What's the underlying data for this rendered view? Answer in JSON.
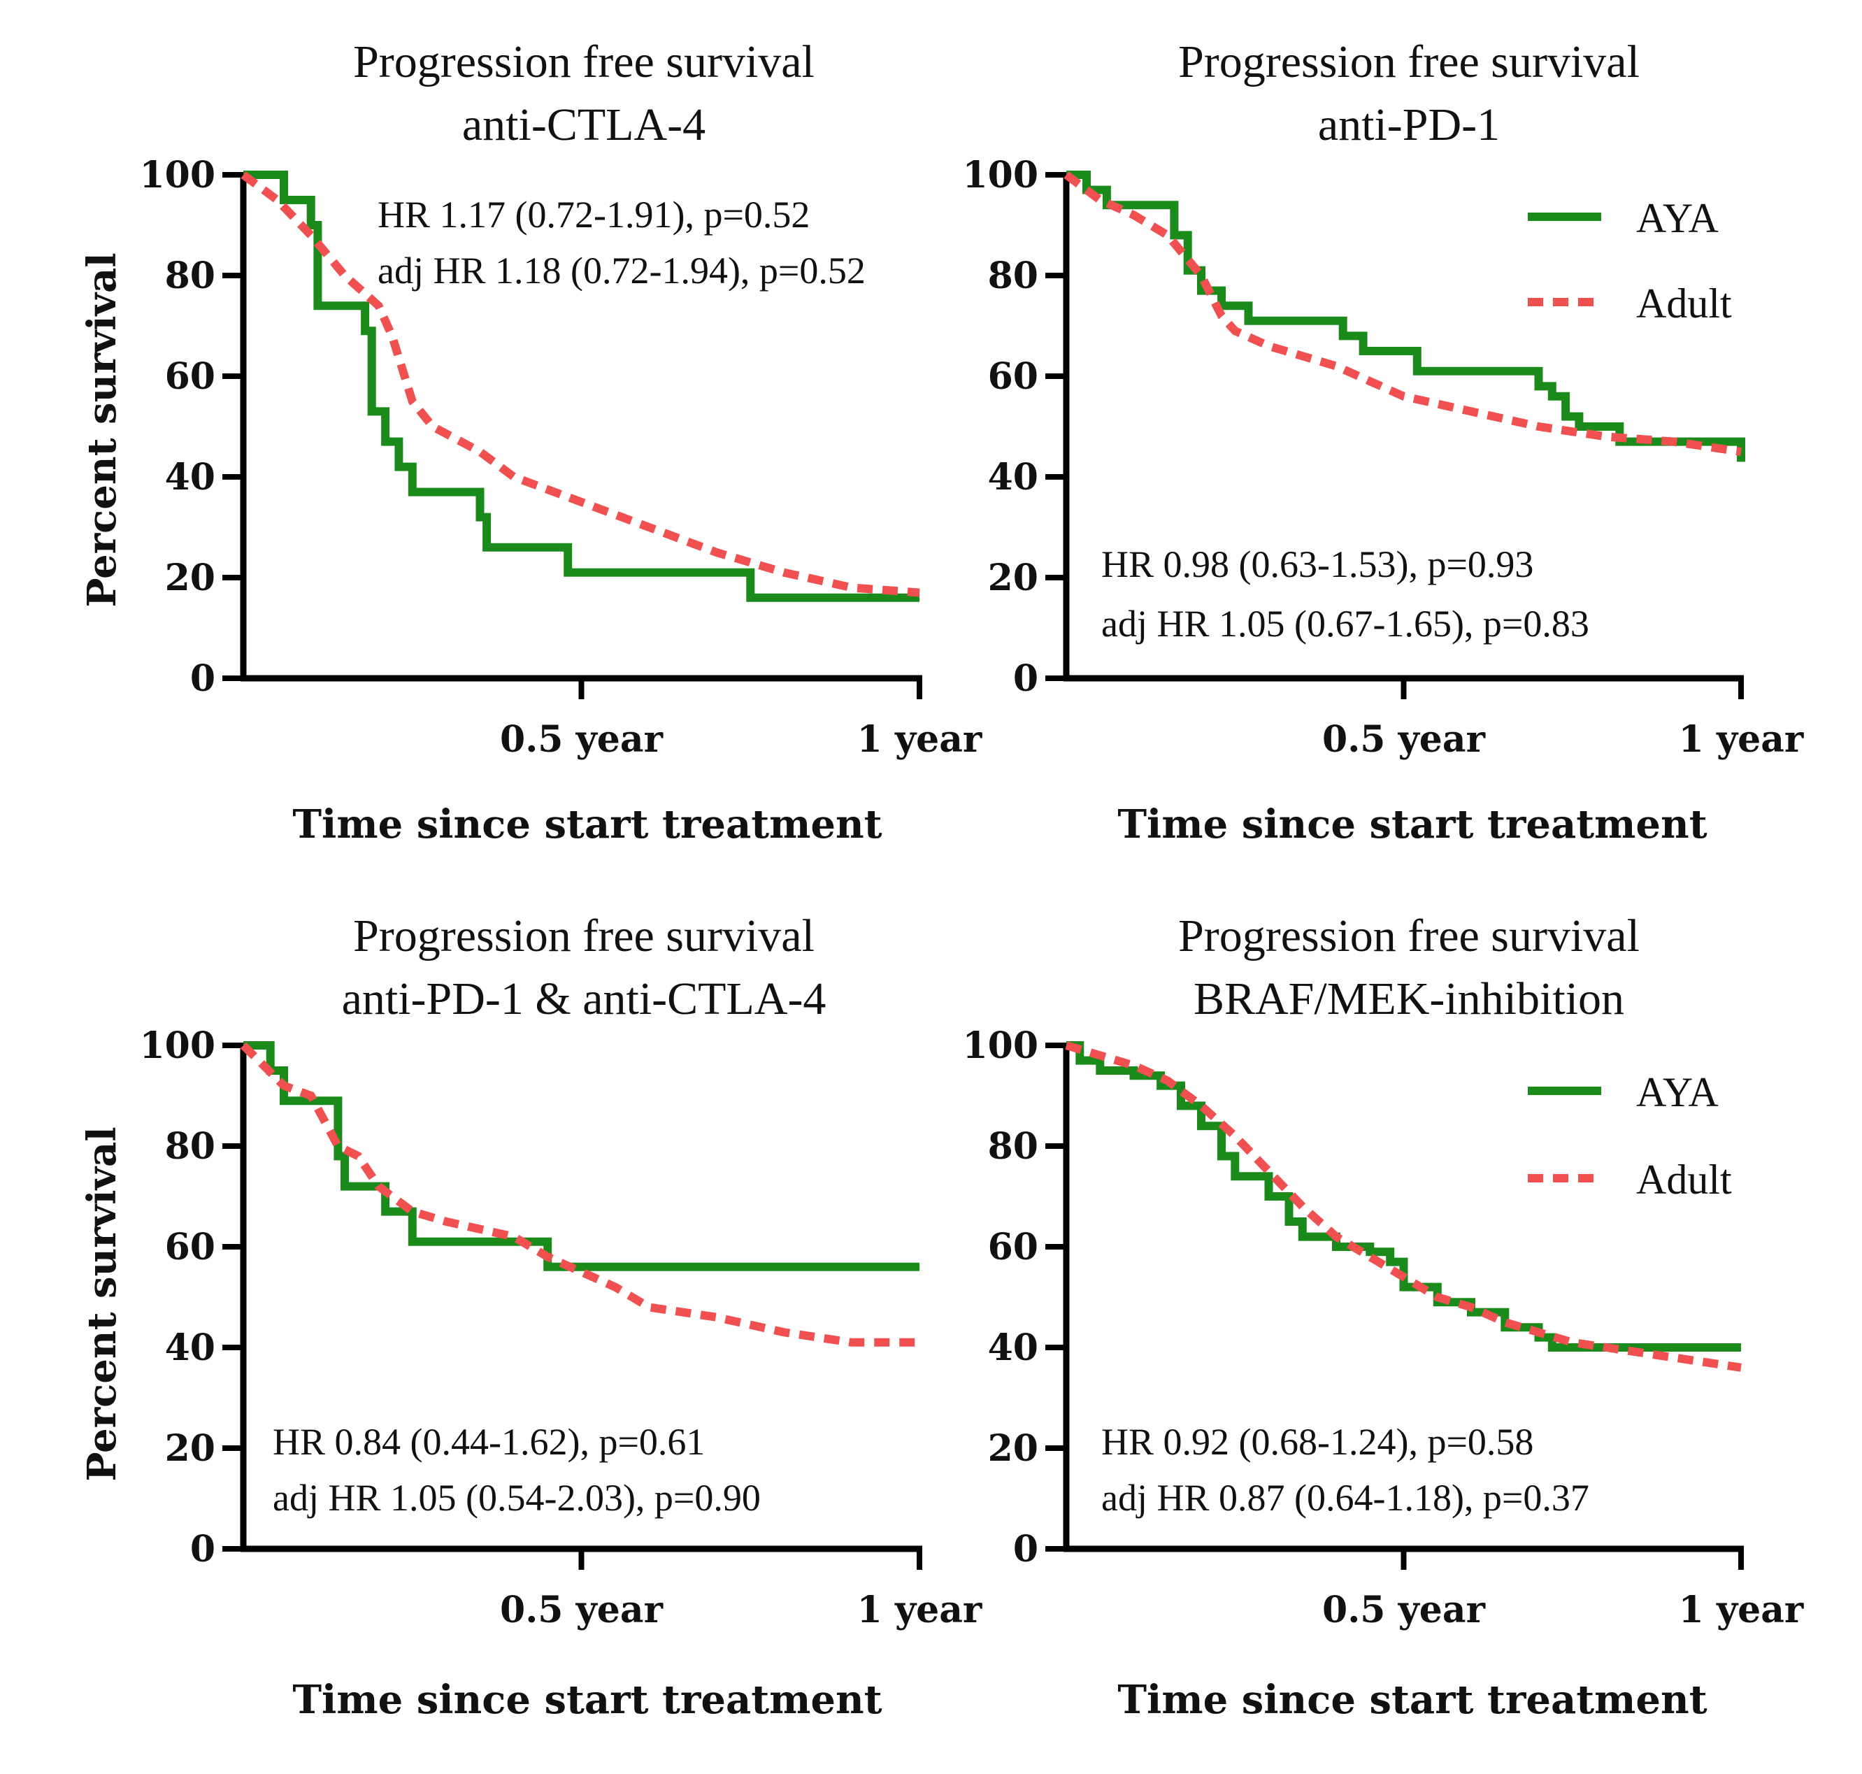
{
  "colors": {
    "aya": "#1a8a1a",
    "adult": "#f05050",
    "axis": "#000000"
  },
  "chart_data": [
    {
      "type": "line",
      "title": "Progression free survival",
      "subtitle": "anti-CTLA-4",
      "xlabel": "Time since start treatment",
      "ylabel": "Percent survival",
      "xlim": [
        0,
        1
      ],
      "ylim": [
        0,
        100
      ],
      "yticks": [
        "0",
        "20",
        "40",
        "60",
        "80",
        "100"
      ],
      "xticks": [
        {
          "value": 0.5,
          "label": "0.5 year"
        },
        {
          "value": 1,
          "label": "1 year"
        }
      ],
      "annotations": [
        "HR 1.17 (0.72-1.91), p=0.52",
        "adj  HR 1.18 (0.72-1.94), p=0.52"
      ],
      "annotation_position": "top-right",
      "legend": [],
      "series": [
        {
          "name": "AYA",
          "style": "solid-step",
          "x": [
            0,
            0.06,
            0.1,
            0.11,
            0.18,
            0.19,
            0.21,
            0.23,
            0.25,
            0.35,
            0.36,
            0.37,
            0.48,
            0.75,
            1.0
          ],
          "y": [
            100,
            95,
            90,
            74,
            69,
            53,
            47,
            42,
            37,
            32,
            26,
            26,
            21,
            16,
            16
          ]
        },
        {
          "name": "Adult",
          "style": "dashed",
          "x": [
            0,
            0.05,
            0.1,
            0.15,
            0.2,
            0.22,
            0.25,
            0.28,
            0.35,
            0.4,
            0.5,
            0.6,
            0.7,
            0.8,
            0.9,
            1.0
          ],
          "y": [
            100,
            95,
            88,
            80,
            74,
            68,
            55,
            50,
            45,
            40,
            35,
            30,
            25,
            21,
            18,
            17
          ]
        }
      ]
    },
    {
      "type": "line",
      "title": "Progression free survival",
      "subtitle": "anti-PD-1",
      "xlabel": "Time since start treatment",
      "ylabel": "",
      "xlim": [
        0,
        1
      ],
      "ylim": [
        0,
        100
      ],
      "yticks": [
        "0",
        "20",
        "40",
        "60",
        "80",
        "100"
      ],
      "xticks": [
        {
          "value": 0.5,
          "label": "0.5 year"
        },
        {
          "value": 1,
          "label": "1 year"
        }
      ],
      "annotations": [
        "HR 0.98 (0.63-1.53), p=0.93",
        "adj  HR 1.05 (0.67-1.65), p=0.83"
      ],
      "annotation_position": "bottom-left",
      "legend": [
        "AYA",
        "Adult"
      ],
      "series": [
        {
          "name": "AYA",
          "style": "solid-step",
          "x": [
            0,
            0.03,
            0.06,
            0.16,
            0.18,
            0.2,
            0.23,
            0.27,
            0.41,
            0.44,
            0.52,
            0.7,
            0.72,
            0.74,
            0.76,
            0.82,
            0.99,
            1.0
          ],
          "y": [
            100,
            97,
            94,
            88,
            81,
            77,
            74,
            71,
            68,
            65,
            61,
            58,
            56,
            52,
            50,
            47,
            47,
            43
          ]
        },
        {
          "name": "Adult",
          "style": "dashed",
          "x": [
            0,
            0.05,
            0.1,
            0.15,
            0.2,
            0.23,
            0.25,
            0.3,
            0.4,
            0.5,
            0.6,
            0.7,
            0.8,
            0.9,
            1.0
          ],
          "y": [
            100,
            95,
            92,
            88,
            80,
            72,
            69,
            66,
            62,
            56,
            53,
            50,
            48,
            47,
            45
          ]
        }
      ]
    },
    {
      "type": "line",
      "title": "Progression free survival",
      "subtitle": "anti-PD-1 & anti-CTLA-4",
      "xlabel": "Time since start treatment",
      "ylabel": "Percent survival",
      "xlim": [
        0,
        1
      ],
      "ylim": [
        0,
        100
      ],
      "yticks": [
        "0",
        "20",
        "40",
        "60",
        "80",
        "100"
      ],
      "xticks": [
        {
          "value": 0.5,
          "label": "0.5 year"
        },
        {
          "value": 1,
          "label": "1 year"
        }
      ],
      "annotations": [
        "HR 0.84 (0.44-1.62), p=0.61",
        "adj  HR 1.05 (0.54-2.03), p=0.90"
      ],
      "annotation_position": "bottom-left",
      "legend": [],
      "series": [
        {
          "name": "AYA",
          "style": "solid-step",
          "x": [
            0,
            0.04,
            0.06,
            0.13,
            0.14,
            0.15,
            0.19,
            0.21,
            0.25,
            0.44,
            0.45,
            1.0
          ],
          "y": [
            100,
            95,
            89,
            89,
            78,
            72,
            72,
            67,
            61,
            61,
            56,
            56
          ]
        },
        {
          "name": "Adult",
          "style": "dashed",
          "x": [
            0,
            0.03,
            0.06,
            0.1,
            0.14,
            0.17,
            0.2,
            0.25,
            0.3,
            0.4,
            0.45,
            0.5,
            0.55,
            0.6,
            0.7,
            0.8,
            0.9,
            1.0
          ],
          "y": [
            100,
            96,
            92,
            90,
            80,
            78,
            72,
            67,
            65,
            62,
            58,
            55,
            52,
            48,
            46,
            43,
            41,
            41
          ]
        }
      ]
    },
    {
      "type": "line",
      "title": "Progression free survival",
      "subtitle": "BRAF/MEK-inhibition",
      "xlabel": "Time since start treatment",
      "ylabel": "",
      "xlim": [
        0,
        1
      ],
      "ylim": [
        0,
        100
      ],
      "yticks": [
        "0",
        "20",
        "40",
        "60",
        "80",
        "100"
      ],
      "xticks": [
        {
          "value": 0.5,
          "label": "0.5 year"
        },
        {
          "value": 1,
          "label": "1 year"
        }
      ],
      "annotations": [
        "HR 0.92 (0.68-1.24), p=0.58",
        "adj  HR 0.87 (0.64-1.18), p=0.37"
      ],
      "annotation_position": "bottom-left",
      "legend": [
        "AYA",
        "Adult"
      ],
      "series": [
        {
          "name": "AYA",
          "style": "solid-step",
          "x": [
            0,
            0.02,
            0.05,
            0.1,
            0.14,
            0.17,
            0.2,
            0.23,
            0.25,
            0.3,
            0.33,
            0.35,
            0.4,
            0.45,
            0.48,
            0.5,
            0.55,
            0.6,
            0.65,
            0.7,
            0.72,
            0.8,
            0.9,
            1.0
          ],
          "y": [
            100,
            97,
            95,
            94,
            92,
            88,
            84,
            78,
            74,
            70,
            65,
            62,
            60,
            59,
            57,
            52,
            49,
            47,
            44,
            42,
            40,
            40,
            40,
            40
          ]
        },
        {
          "name": "Adult",
          "style": "dashed",
          "x": [
            0,
            0.05,
            0.1,
            0.15,
            0.2,
            0.25,
            0.3,
            0.35,
            0.4,
            0.45,
            0.5,
            0.55,
            0.6,
            0.65,
            0.7,
            0.75,
            0.8,
            0.85,
            0.9,
            0.95,
            1.0
          ],
          "y": [
            100,
            98,
            96,
            93,
            88,
            82,
            75,
            68,
            62,
            58,
            54,
            50,
            48,
            45,
            43,
            41,
            40,
            39,
            38,
            37,
            36
          ]
        }
      ]
    }
  ]
}
